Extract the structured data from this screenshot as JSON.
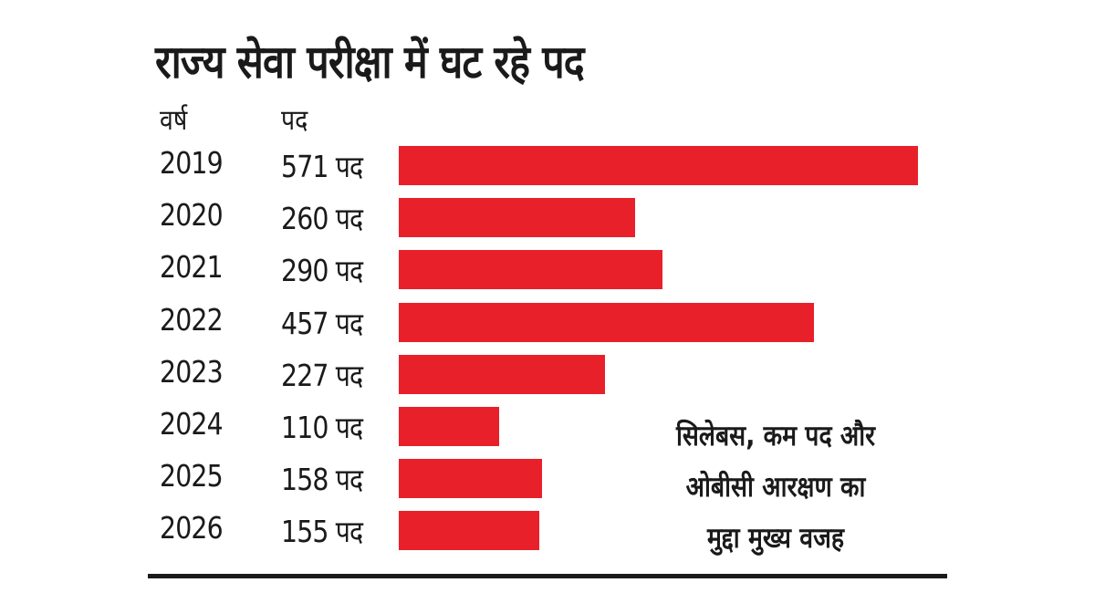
{
  "title": "राज्य सेवा परीक्षा में घट रहे पद",
  "headers": {
    "year": "वर्ष",
    "posts": "पद"
  },
  "unit_suffix": " पद",
  "note_lines": [
    "सिलेबस, कम पद और",
    "ओबीसी आरक्षण का",
    "मुद्दा मुख्य वजह"
  ],
  "colors": {
    "bar": "#e8202a",
    "text": "#1a1a1a",
    "rule": "#1a1a1a"
  },
  "chart_data": {
    "type": "bar",
    "orientation": "horizontal",
    "title": "राज्य सेवा परीक्षा में घट रहे पद",
    "xlabel": "पद",
    "ylabel": "वर्ष",
    "categories": [
      "2019",
      "2020",
      "2021",
      "2022",
      "2023",
      "2024",
      "2025",
      "2026"
    ],
    "values": [
      571,
      260,
      290,
      457,
      227,
      110,
      158,
      155
    ],
    "data_labels": [
      "571 पद",
      "260 पद",
      "290 पद",
      "457 पद",
      "227 पद",
      "110 पद",
      "158 पद",
      "155 पद"
    ],
    "grid": false,
    "legend": "none"
  }
}
